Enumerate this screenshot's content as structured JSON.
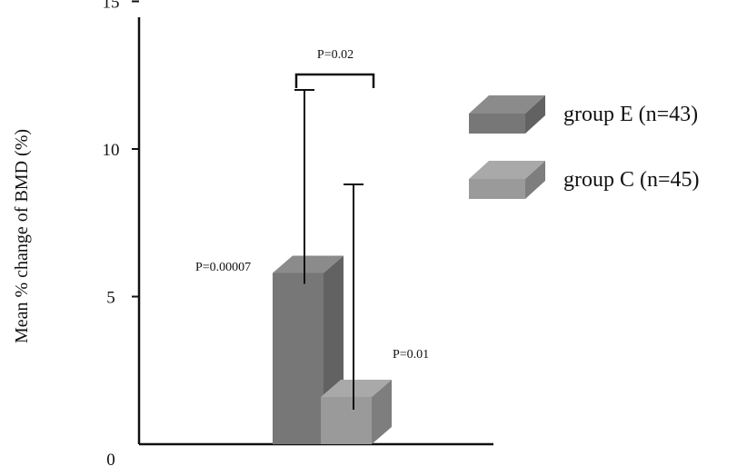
{
  "chart_data": {
    "type": "bar",
    "title": "",
    "xlabel": "",
    "ylabel": "Mean % change of BMD (%)",
    "ylim": [
      0,
      15
    ],
    "yticks": [
      "0",
      "5",
      "10",
      "15"
    ],
    "grid": false,
    "legend_position": "right",
    "bar_style": "3d",
    "series": [
      {
        "name": "group E (n=43)",
        "value": 5.8,
        "error_upper": 12.0,
        "color": "#777777",
        "pvalue": "P=0.00007"
      },
      {
        "name": "group C (n=45)",
        "value": 1.6,
        "error_upper": 8.8,
        "color": "#9a9a9a",
        "pvalue": "P=0.01"
      }
    ],
    "comparison": {
      "label": "P=0.02"
    }
  }
}
